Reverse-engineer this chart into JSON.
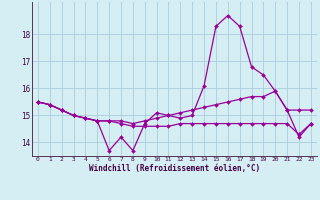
{
  "x": [
    0,
    1,
    2,
    3,
    4,
    5,
    6,
    7,
    8,
    9,
    10,
    11,
    12,
    13,
    14,
    15,
    16,
    17,
    18,
    19,
    20,
    21,
    22,
    23
  ],
  "line1": [
    15.5,
    15.4,
    15.2,
    15.0,
    14.9,
    14.8,
    13.7,
    14.2,
    13.7,
    14.7,
    15.1,
    15.0,
    14.9,
    15.0,
    16.1,
    18.3,
    18.7,
    18.3,
    16.8,
    16.5,
    15.9,
    15.2,
    14.2,
    14.7
  ],
  "line2": [
    15.5,
    15.4,
    15.2,
    15.0,
    14.9,
    14.8,
    14.8,
    14.7,
    14.6,
    14.6,
    14.6,
    14.6,
    14.7,
    14.7,
    14.7,
    14.7,
    14.7,
    14.7,
    14.7,
    14.7,
    14.7,
    14.7,
    14.3,
    14.7
  ],
  "line3": [
    15.5,
    15.4,
    15.2,
    15.0,
    14.9,
    14.8,
    14.8,
    14.8,
    14.7,
    14.8,
    14.9,
    15.0,
    15.1,
    15.2,
    15.3,
    15.4,
    15.5,
    15.6,
    15.7,
    15.7,
    15.9,
    15.2,
    15.2,
    15.2
  ],
  "line_color": "#990099",
  "bg_color": "#d4eef4",
  "grid_color": "#aaccdd",
  "xlabel": "Windchill (Refroidissement éolien,°C)",
  "ylim": [
    13.5,
    19.2
  ],
  "xlim": [
    -0.5,
    23.5
  ],
  "yticks": [
    14,
    15,
    16,
    17,
    18
  ],
  "xticks": [
    0,
    1,
    2,
    3,
    4,
    5,
    6,
    7,
    8,
    9,
    10,
    11,
    12,
    13,
    14,
    15,
    16,
    17,
    18,
    19,
    20,
    21,
    22,
    23
  ],
  "xlabel_fontsize": 5.5,
  "ytick_fontsize": 5.5,
  "xtick_fontsize": 4.5
}
